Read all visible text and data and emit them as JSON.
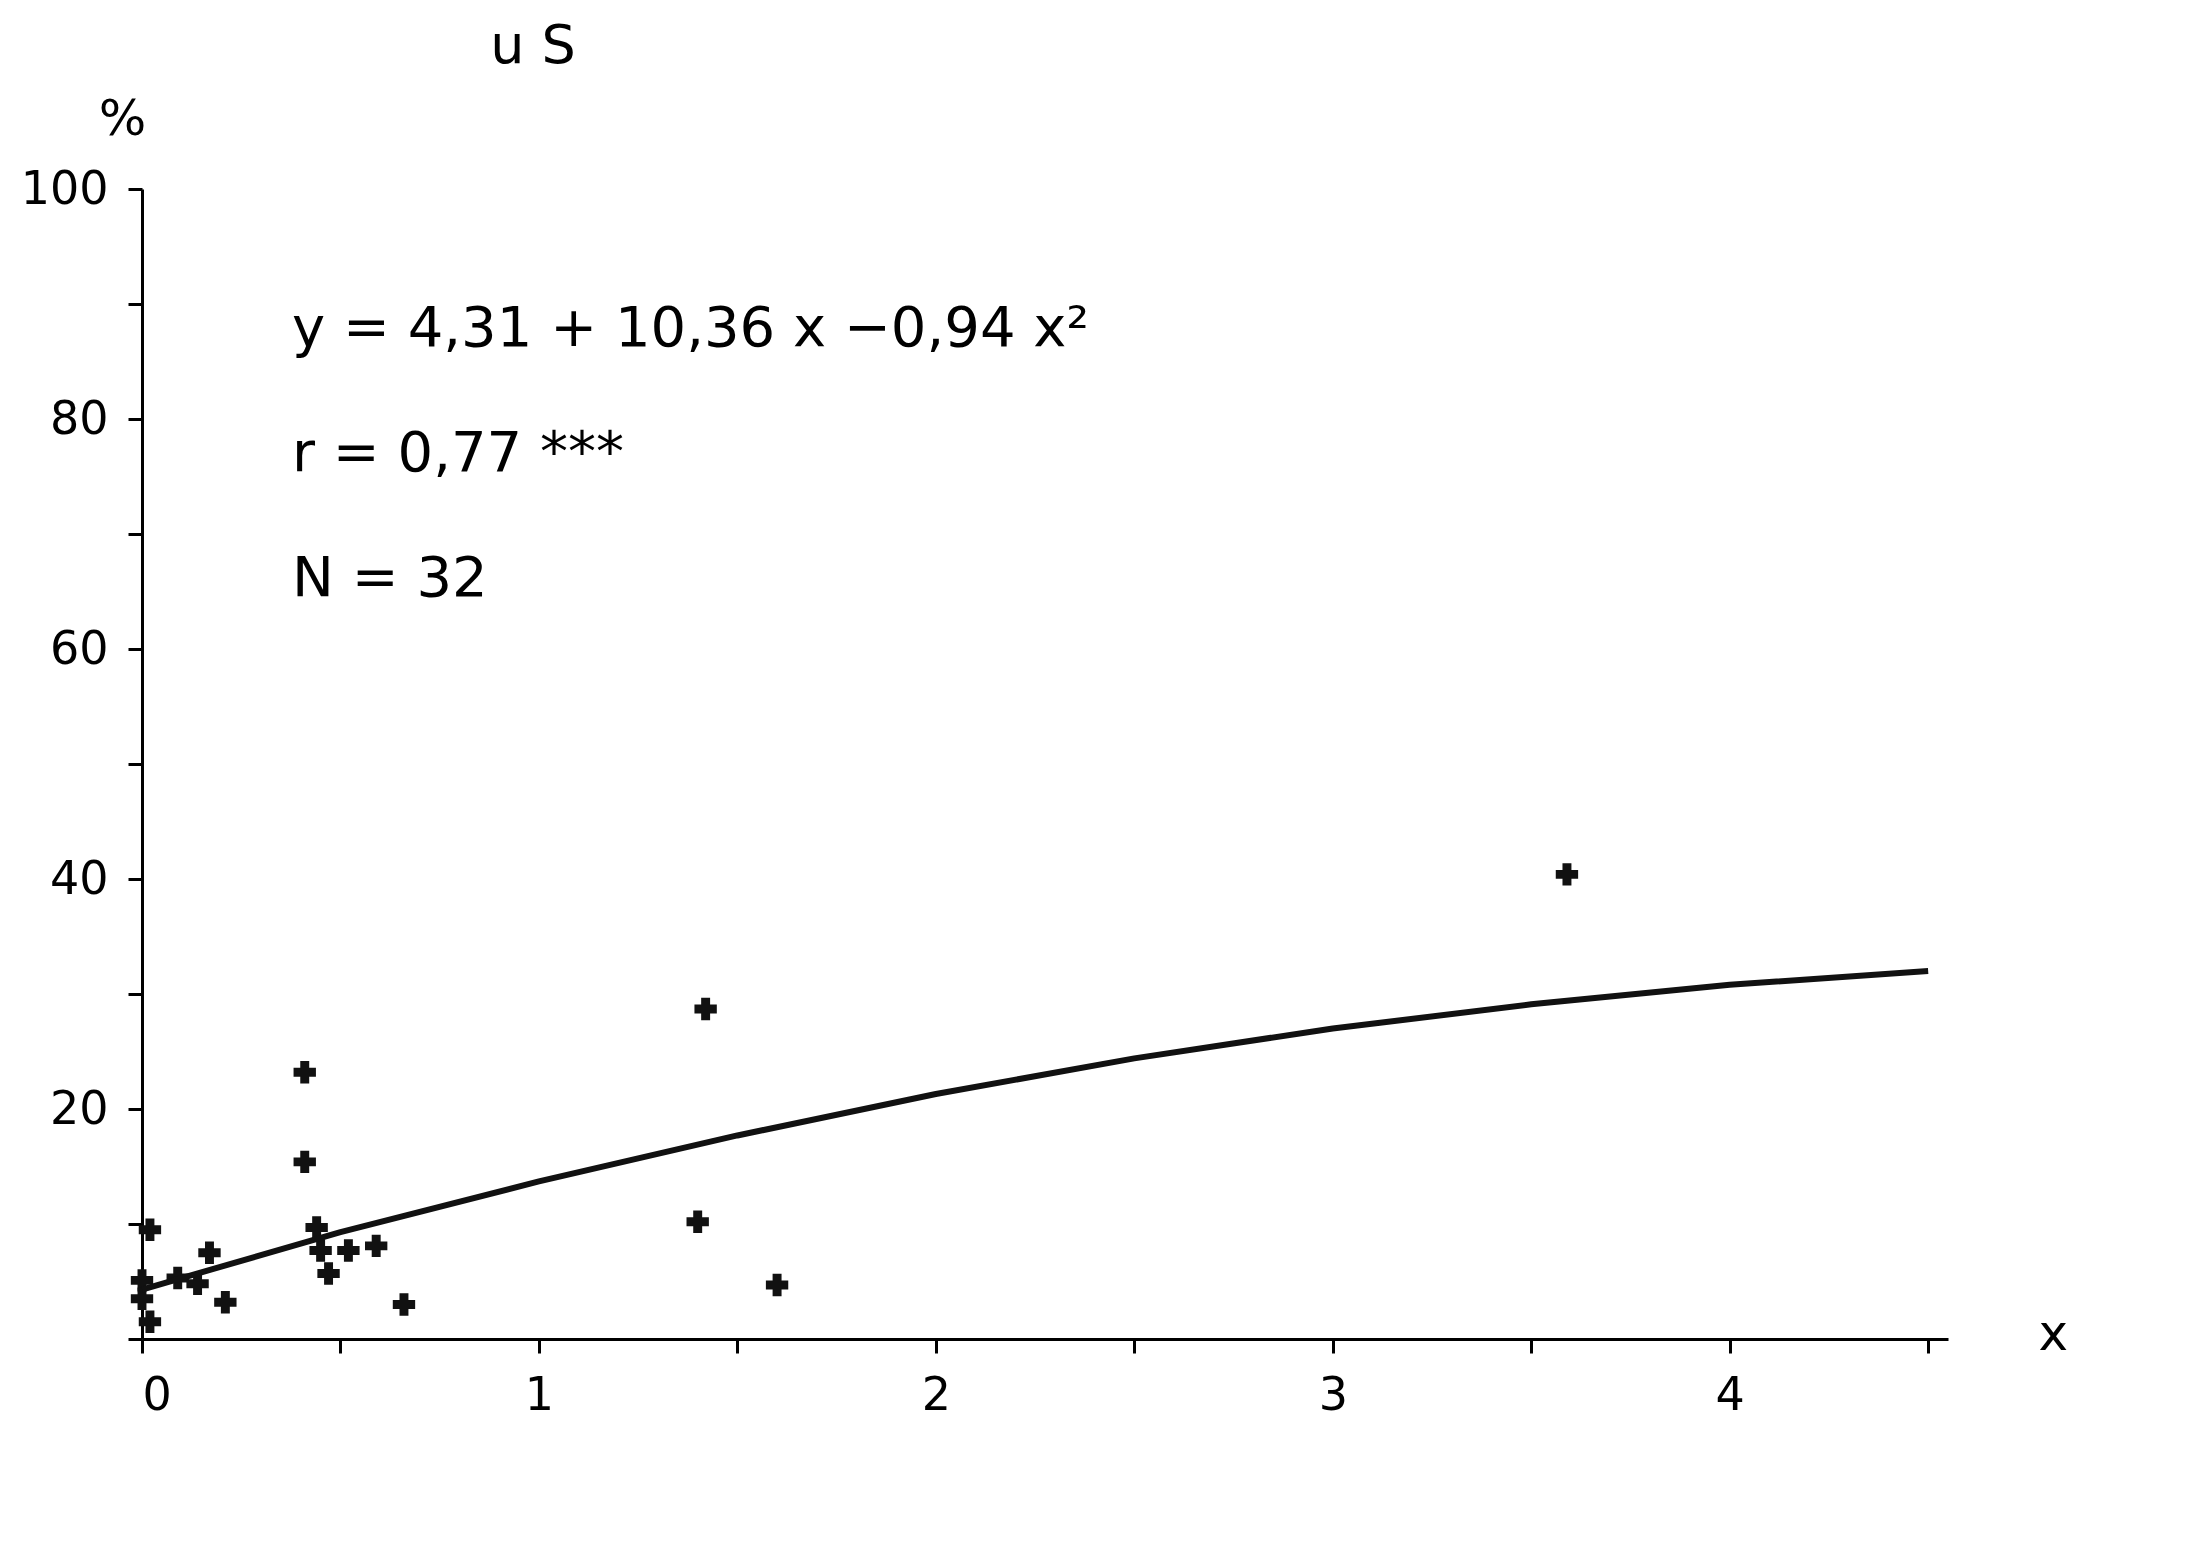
{
  "chart_data": {
    "type": "scatter",
    "title": "u S",
    "ylabel": "%",
    "xlabel": "x",
    "annotations": [
      "y = 4,31 + 10,36 x −0,94 x²",
      "r = 0,77 ***",
      "N = 32"
    ],
    "xlim": [
      0,
      4.55
    ],
    "ylim": [
      0,
      100
    ],
    "xticks": [
      0,
      {
        "value": 0.5,
        "label": null
      },
      1,
      {
        "value": 1.5,
        "label": null
      },
      2,
      {
        "value": 2.5,
        "label": null
      },
      3,
      {
        "value": 3.5,
        "label": null
      },
      4,
      {
        "value": 4.5,
        "label": null
      }
    ],
    "yticks": [
      {
        "value": 0,
        "label": null
      },
      {
        "value": 10,
        "label": null
      },
      20,
      {
        "value": 30,
        "label": null
      },
      40,
      {
        "value": 50,
        "label": null
      },
      60,
      {
        "value": 70,
        "label": null
      },
      80,
      {
        "value": 90,
        "label": null
      },
      100
    ],
    "grid": false,
    "legend": false,
    "series": [
      {
        "type": "scatter",
        "marker": "cross",
        "color": "#111111",
        "x": [
          3.59,
          1.42,
          0.41,
          0.41,
          1.4,
          1.6,
          0.66,
          0.44,
          0.47,
          0.45,
          0.52,
          0.59,
          0.02,
          0.17,
          0.21,
          0,
          0,
          0.02,
          0.09,
          0.14
        ],
        "values": [
          40.4,
          28.7,
          23.2,
          15.4,
          10.2,
          4.7,
          3.0,
          9.7,
          5.7,
          7.7,
          7.7,
          8.1,
          9.5,
          7.5,
          3.2,
          5.1,
          3.5,
          1.5,
          5.3,
          4.8
        ]
      },
      {
        "type": "line",
        "marker": "none",
        "line_style": "solid",
        "color": "#111111",
        "x": [
          0,
          0.5,
          1,
          1.5,
          2,
          2.5,
          3,
          3.5,
          4,
          4.5
        ],
        "values": [
          4.3,
          9.3,
          13.7,
          17.7,
          21.3,
          24.4,
          27.0,
          29.1,
          30.8,
          32.0
        ]
      }
    ]
  }
}
